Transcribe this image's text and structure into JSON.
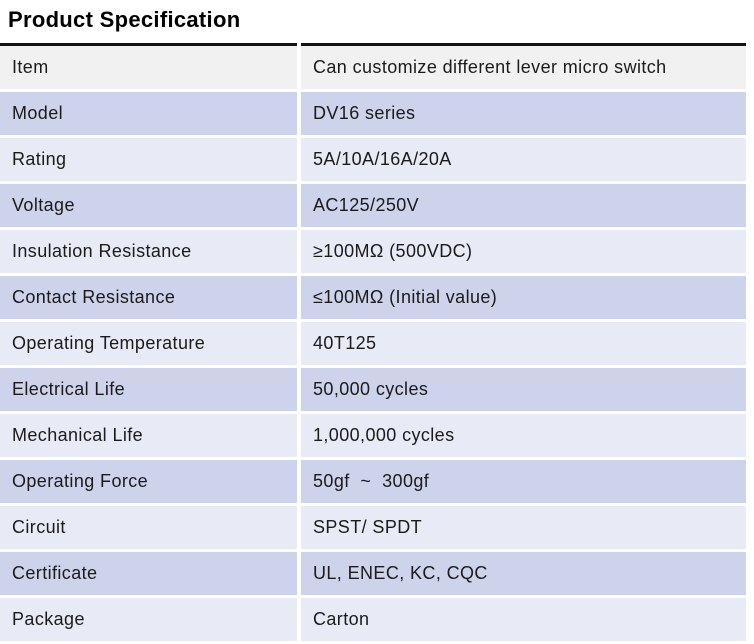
{
  "title": "Product Specification",
  "table": {
    "rows": [
      {
        "label": "Item",
        "value": "Can customize different lever micro switch"
      },
      {
        "label": "Model",
        "value": "DV16 series"
      },
      {
        "label": "Rating",
        "value": "5A/10A/16A/20A"
      },
      {
        "label": "Voltage",
        "value": "AC125/250V"
      },
      {
        "label": "Insulation Resistance",
        "value": "≥100MΩ (500VDC)"
      },
      {
        "label": "Contact Resistance",
        "value": "≤100MΩ (Initial value)"
      },
      {
        "label": "Operating Temperature",
        "value": "40T125"
      },
      {
        "label": "Electrical Life",
        "value": "50,000 cycles"
      },
      {
        "label": "Mechanical Life",
        "value": "1,000,000 cycles"
      },
      {
        "label": "Operating Force",
        "value": "50gf  ~  300gf"
      },
      {
        "label": "Circuit",
        "value": "SPST/ SPDT"
      },
      {
        "label": "Certificate",
        "value": "UL, ENEC, KC, CQC"
      },
      {
        "label": "Package",
        "value": "Carton"
      }
    ]
  },
  "colors": {
    "title": "#000000",
    "text": "#1b1b1b",
    "border-top": "#121212",
    "row-header": "#f1f1f1",
    "row-dark": "#cdd3ea",
    "row-light": "#e8eaf6"
  }
}
